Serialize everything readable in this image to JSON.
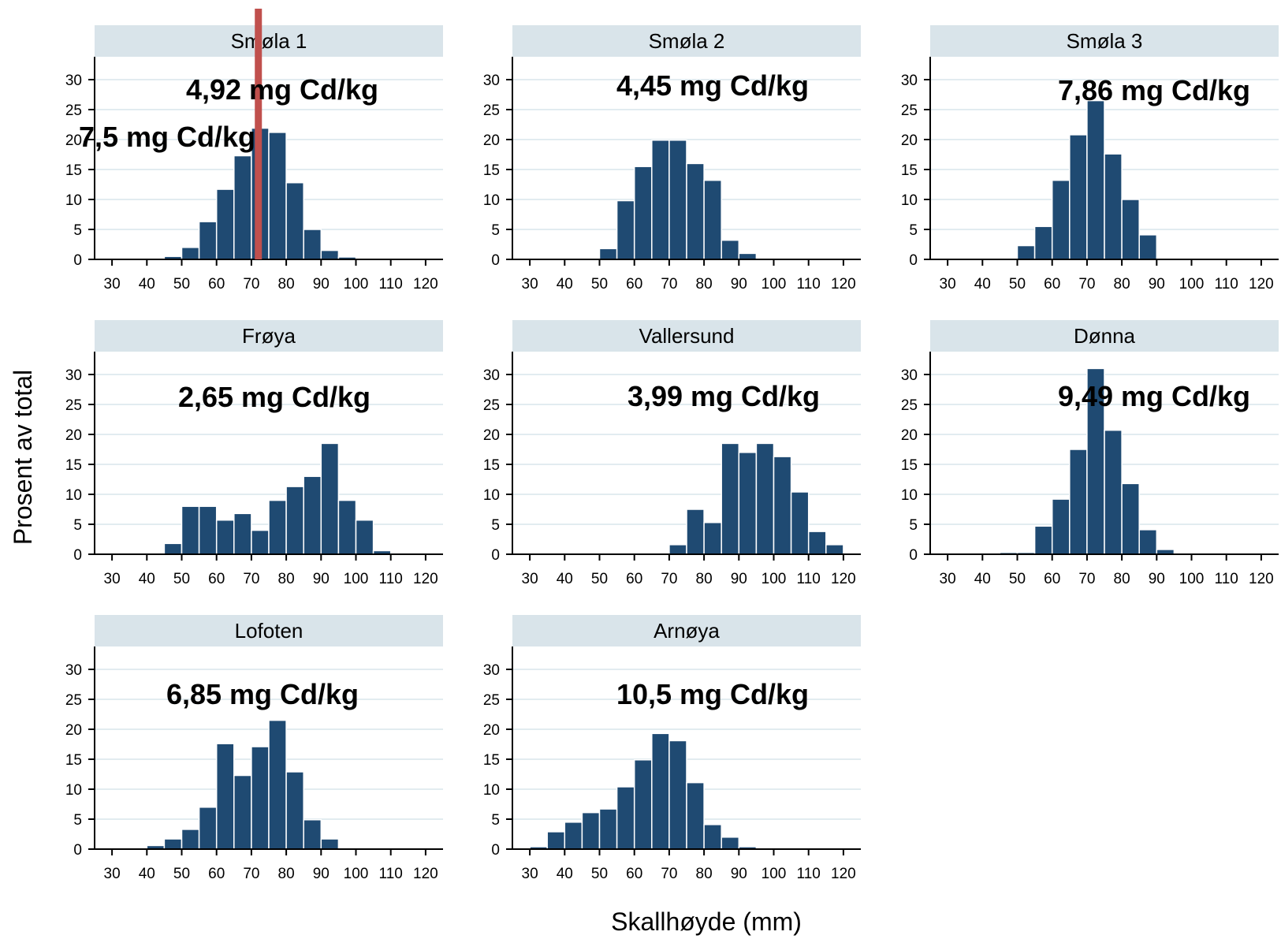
{
  "figure": {
    "ylabel": "Prosent av total",
    "xlabel": "Skallhøyde (mm)"
  },
  "colors": {
    "bar": "#1f4a72",
    "header_bg": "#d9e4ea",
    "grid": "#e2ecf0",
    "marker": "#c0504d",
    "axis": "#000000"
  },
  "chart_data": [
    {
      "type": "bar",
      "title": "Smøla 1",
      "annotations": [
        "4,92 mg Cd/kg",
        "7,5 mg Cd/kg"
      ],
      "marker_x": 72,
      "bin_width": 5,
      "bin_starts": [
        45,
        50,
        55,
        60,
        65,
        70,
        75,
        80,
        85,
        90,
        95
      ],
      "values": [
        0.5,
        2,
        6.3,
        11.7,
        17.3,
        21.9,
        21.2,
        12.8,
        5,
        1.5,
        0.4
      ],
      "xticks": [
        30,
        40,
        50,
        60,
        70,
        80,
        90,
        100,
        110,
        120
      ],
      "yticks": [
        0,
        5,
        10,
        15,
        20,
        25,
        30
      ],
      "xlim": [
        25,
        125
      ],
      "ylim": [
        0,
        33.5
      ]
    },
    {
      "type": "bar",
      "title": "Smøla 2",
      "annotations": [
        "4,45 mg Cd/kg"
      ],
      "bin_width": 5,
      "bin_starts": [
        50,
        55,
        60,
        65,
        70,
        75,
        80,
        85,
        90
      ],
      "values": [
        1.8,
        9.8,
        15.5,
        19.9,
        19.9,
        16,
        13.2,
        3.2,
        1
      ],
      "xticks": [
        30,
        40,
        50,
        60,
        70,
        80,
        90,
        100,
        110,
        120
      ],
      "yticks": [
        0,
        5,
        10,
        15,
        20,
        25,
        30
      ],
      "xlim": [
        25,
        125
      ],
      "ylim": [
        0,
        33.5
      ]
    },
    {
      "type": "bar",
      "title": "Smøla 3",
      "annotations": [
        "7,86 mg Cd/kg"
      ],
      "bin_width": 5,
      "bin_starts": [
        50,
        55,
        60,
        65,
        70,
        75,
        80,
        85
      ],
      "values": [
        2.3,
        5.5,
        13.2,
        20.8,
        26.5,
        17.6,
        10,
        4.1
      ],
      "xticks": [
        30,
        40,
        50,
        60,
        70,
        80,
        90,
        100,
        110,
        120
      ],
      "yticks": [
        0,
        5,
        10,
        15,
        20,
        25,
        30
      ],
      "xlim": [
        25,
        125
      ],
      "ylim": [
        0,
        33.5
      ]
    },
    {
      "type": "bar",
      "title": "Frøya",
      "annotations": [
        "2,65 mg Cd/kg"
      ],
      "bin_width": 5,
      "bin_starts": [
        45,
        50,
        55,
        60,
        65,
        70,
        75,
        80,
        85,
        90,
        95,
        100,
        105
      ],
      "values": [
        1.8,
        8,
        8,
        5.7,
        6.8,
        4,
        9,
        11.3,
        13,
        18.5,
        9,
        5.7,
        0.6
      ],
      "xticks": [
        30,
        40,
        50,
        60,
        70,
        80,
        90,
        100,
        110,
        120
      ],
      "yticks": [
        0,
        5,
        10,
        15,
        20,
        25,
        30
      ],
      "xlim": [
        25,
        125
      ],
      "ylim": [
        0,
        33.5
      ]
    },
    {
      "type": "bar",
      "title": "Vallersund",
      "annotations": [
        "3,99 mg Cd/kg"
      ],
      "bin_width": 5,
      "bin_starts": [
        70,
        75,
        80,
        85,
        90,
        95,
        100,
        105,
        110,
        115
      ],
      "values": [
        1.6,
        7.5,
        5.3,
        18.5,
        17,
        18.5,
        16.3,
        10.4,
        3.8,
        1.6
      ],
      "xticks": [
        30,
        40,
        50,
        60,
        70,
        80,
        90,
        100,
        110,
        120
      ],
      "yticks": [
        0,
        5,
        10,
        15,
        20,
        25,
        30
      ],
      "xlim": [
        25,
        125
      ],
      "ylim": [
        0,
        33.5
      ]
    },
    {
      "type": "bar",
      "title": "Dønna",
      "annotations": [
        "9,49 mg Cd/kg"
      ],
      "bin_width": 5,
      "bin_starts": [
        45,
        50,
        55,
        60,
        65,
        70,
        75,
        80,
        85,
        90
      ],
      "values": [
        0.3,
        0.3,
        4.7,
        9.2,
        17.5,
        31,
        20.7,
        11.8,
        4.1,
        0.8
      ],
      "xticks": [
        30,
        40,
        50,
        60,
        70,
        80,
        90,
        100,
        110,
        120
      ],
      "yticks": [
        0,
        5,
        10,
        15,
        20,
        25,
        30
      ],
      "xlim": [
        25,
        125
      ],
      "ylim": [
        0,
        33.5
      ]
    },
    {
      "type": "bar",
      "title": "Lofoten",
      "annotations": [
        "6,85 mg Cd/kg"
      ],
      "bin_width": 5,
      "bin_starts": [
        40,
        45,
        50,
        55,
        60,
        65,
        70,
        75,
        80,
        85,
        90
      ],
      "values": [
        0.6,
        1.7,
        3.3,
        7,
        17.6,
        12.3,
        17.1,
        21.5,
        12.9,
        4.9,
        1.7
      ],
      "xticks": [
        30,
        40,
        50,
        60,
        70,
        80,
        90,
        100,
        110,
        120
      ],
      "yticks": [
        0,
        5,
        10,
        15,
        20,
        25,
        30
      ],
      "xlim": [
        25,
        125
      ],
      "ylim": [
        0,
        33.5
      ]
    },
    {
      "type": "bar",
      "title": "Arnøya",
      "annotations": [
        "10,5 mg Cd/kg"
      ],
      "bin_width": 5,
      "bin_starts": [
        30,
        35,
        40,
        45,
        50,
        55,
        60,
        65,
        70,
        75,
        80,
        85,
        90
      ],
      "values": [
        0.4,
        2.9,
        4.5,
        6.1,
        6.7,
        10.4,
        14.9,
        19.3,
        18.1,
        11.1,
        4.1,
        2,
        0.4
      ],
      "xticks": [
        30,
        40,
        50,
        60,
        70,
        80,
        90,
        100,
        110,
        120
      ],
      "yticks": [
        0,
        5,
        10,
        15,
        20,
        25,
        30
      ],
      "xlim": [
        25,
        125
      ],
      "ylim": [
        0,
        33.5
      ]
    }
  ]
}
